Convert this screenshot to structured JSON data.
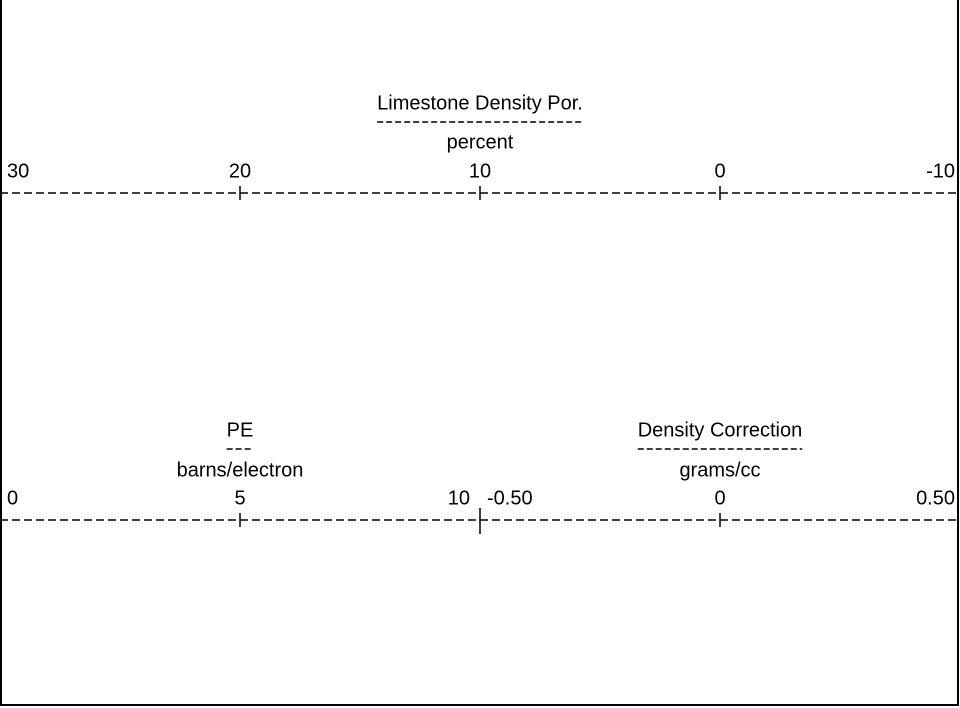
{
  "scales": [
    {
      "title": "Limestone Density Por.",
      "unit": "percent",
      "ticks": [
        30,
        20,
        10,
        0,
        -10
      ]
    },
    {
      "title": "PE",
      "unit": "barns/electron",
      "ticks": [
        0,
        5,
        10
      ]
    },
    {
      "title": "Density Correction",
      "unit": "grams/cc",
      "ticks": [
        {
          "value": -0.5,
          "label": "-0.50"
        },
        0,
        {
          "value": 0.5,
          "label": "0.50"
        }
      ]
    }
  ]
}
